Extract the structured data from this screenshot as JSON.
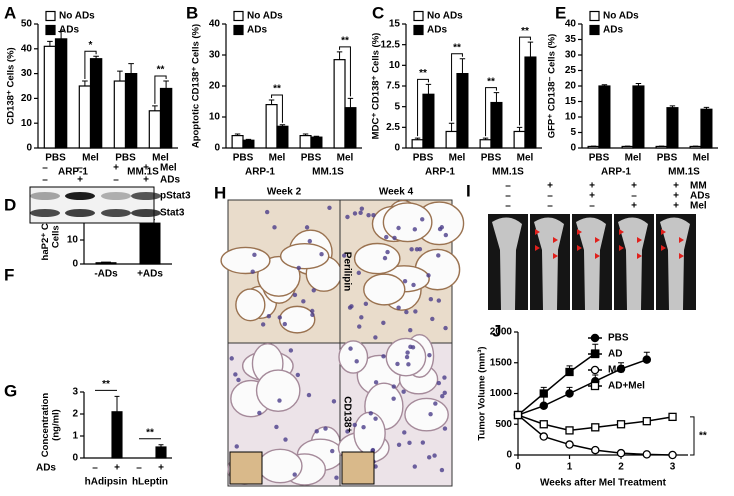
{
  "chart_data": [
    {
      "panel": "A",
      "type": "bar",
      "ylabel": "CD138⁺ Cells (%)",
      "categories": [
        "PBS",
        "Mel",
        "PBS",
        "Mel"
      ],
      "groups": [
        "ARP-1",
        "MM.1S"
      ],
      "series": [
        {
          "name": "No ADs",
          "color": "#ffffff",
          "values": [
            41,
            25,
            27,
            15
          ],
          "errors": [
            2,
            2,
            4,
            2
          ]
        },
        {
          "name": "ADs",
          "color": "#000000",
          "values": [
            44,
            36,
            30,
            24
          ],
          "errors": [
            3,
            1,
            4,
            3
          ]
        }
      ],
      "ylim": [
        0,
        50
      ],
      "yticks": [
        0,
        10,
        20,
        30,
        40,
        50
      ],
      "significance": [
        null,
        "*",
        null,
        "**"
      ],
      "legend": "upper left"
    },
    {
      "panel": "B",
      "type": "bar",
      "ylabel": "Apoptotic CD138⁺ Cells (%)",
      "categories": [
        "PBS",
        "Mel",
        "PBS",
        "Mel"
      ],
      "groups": [
        "ARP-1",
        "MM.1S"
      ],
      "series": [
        {
          "name": "No ADs",
          "color": "#ffffff",
          "values": [
            4,
            14,
            4,
            28.5
          ],
          "errors": [
            0.5,
            1.5,
            0.5,
            2.5
          ]
        },
        {
          "name": "ADs",
          "color": "#000000",
          "values": [
            2.5,
            7,
            3.5,
            13
          ],
          "errors": [
            0.3,
            0.5,
            0.3,
            3
          ]
        }
      ],
      "ylim": [
        0,
        40
      ],
      "yticks": [
        0,
        10,
        20,
        30,
        40
      ],
      "significance": [
        null,
        "**",
        null,
        "**"
      ],
      "legend": "upper left"
    },
    {
      "panel": "C",
      "type": "bar",
      "ylabel": "MDC⁺ CD138⁺ Cells (%)",
      "categories": [
        "PBS",
        "Mel",
        "PBS",
        "Mel"
      ],
      "groups": [
        "ARP-1",
        "MM.1S"
      ],
      "series": [
        {
          "name": "No ADs",
          "color": "#ffffff",
          "values": [
            1,
            2,
            1,
            2
          ],
          "errors": [
            0.2,
            1,
            0.2,
            0.5
          ]
        },
        {
          "name": "ADs",
          "color": "#000000",
          "values": [
            6.5,
            9,
            5.5,
            11
          ],
          "errors": [
            1.2,
            1.8,
            1.2,
            1.8
          ]
        }
      ],
      "ylim": [
        0,
        15
      ],
      "yticks": [
        0,
        2.5,
        5,
        7.5,
        10,
        12.5,
        15
      ],
      "significance": [
        "**",
        "**",
        "**",
        "**"
      ],
      "legend": "upper left"
    },
    {
      "panel": "E",
      "type": "bar",
      "ylabel": "GFP⁺ CD138⁻ Cells (%)",
      "categories": [
        "PBS",
        "Mel",
        "PBS",
        "Mel"
      ],
      "groups": [
        "ARP-1",
        "MM.1S"
      ],
      "series": [
        {
          "name": "No ADs",
          "color": "#ffffff",
          "values": [
            0.5,
            0.5,
            0.5,
            0.5
          ],
          "errors": [
            0.1,
            0.1,
            0.1,
            0.1
          ]
        },
        {
          "name": "ADs",
          "color": "#000000",
          "values": [
            20,
            20,
            13,
            12.5
          ],
          "errors": [
            0.4,
            0.8,
            0.6,
            0.6
          ]
        }
      ],
      "ylim": [
        0,
        40
      ],
      "yticks": [
        0,
        5,
        10,
        15,
        20,
        25,
        30,
        35,
        40
      ],
      "legend": "upper left"
    },
    {
      "panel": "F",
      "type": "bar",
      "ylabel": "haP2⁺ CD138⁻ Cells (%)",
      "categories": [
        "-ADs",
        "+ADs"
      ],
      "values": [
        0.5,
        17
      ],
      "errors": [
        0.3,
        1.5
      ],
      "color": "#000000",
      "ylim": [
        0,
        30
      ],
      "yticks": [
        0,
        10,
        20,
        30
      ],
      "significance": [
        null,
        "**"
      ]
    },
    {
      "panel": "G",
      "type": "bar",
      "ylabel": "Concentration (ng/ml)",
      "categories": [
        "–",
        "+",
        "–",
        "+"
      ],
      "groups": [
        "hAdipsin",
        "hLeptin"
      ],
      "row_label": "ADs",
      "values": [
        0,
        2.1,
        0,
        0.5
      ],
      "errors": [
        0,
        0.7,
        0,
        0.1
      ],
      "color": "#000000",
      "ylim": [
        0,
        3
      ],
      "yticks": [
        0,
        1,
        2,
        3
      ],
      "group_significance": [
        "**",
        "**"
      ]
    },
    {
      "panel": "J",
      "type": "line",
      "xlabel": "Weeks after Mel Treatment",
      "ylabel": "Tumor Volume (mm³)",
      "series": [
        {
          "name": "PBS",
          "color": "#000000",
          "marker": "circle",
          "filled": true,
          "x": [
            0,
            0.5,
            1,
            1.5,
            2,
            2.5
          ],
          "values": [
            650,
            800,
            1000,
            1200,
            1400,
            1550
          ],
          "errors": [
            0,
            150,
            100,
            100,
            100,
            120
          ]
        },
        {
          "name": "AD",
          "color": "#000000",
          "marker": "square",
          "filled": true,
          "x": [
            0,
            0.5,
            1,
            1.5
          ],
          "values": [
            650,
            1000,
            1350,
            1650
          ],
          "errors": [
            0,
            100,
            100,
            150
          ]
        },
        {
          "name": "Mel",
          "color": "#000000",
          "marker": "circle",
          "filled": false,
          "x": [
            0,
            0.5,
            1,
            1.5,
            2,
            2.5,
            3
          ],
          "values": [
            650,
            300,
            170,
            80,
            30,
            10,
            0
          ]
        },
        {
          "name": "AD+Mel",
          "color": "#000000",
          "marker": "square",
          "filled": false,
          "x": [
            0,
            0.5,
            1,
            1.5,
            2,
            2.5,
            3
          ],
          "values": [
            650,
            500,
            400,
            450,
            500,
            550,
            620
          ]
        }
      ],
      "xlim": [
        0,
        3.3
      ],
      "xticks": [
        0,
        1,
        2,
        3
      ],
      "ylim": [
        0,
        2000
      ],
      "yticks": [
        0,
        500,
        1000,
        1500,
        2000
      ],
      "annotation": "**",
      "legend": "upper right"
    }
  ],
  "blot": {
    "panel": "D",
    "rows": [
      {
        "label": "Mel",
        "marks": [
          "–",
          "–",
          "+",
          "+"
        ]
      },
      {
        "label": "ADs",
        "marks": [
          "–",
          "+",
          "–",
          "+"
        ]
      }
    ],
    "bands": [
      "pStat3",
      "Stat3"
    ]
  },
  "histology": {
    "panel": "H",
    "columns": [
      "Week 2",
      "Week 4"
    ],
    "rows": [
      "Perilipin",
      "CD138⁺"
    ]
  },
  "xray": {
    "panel": "I",
    "rows": [
      {
        "label": "MM",
        "marks": [
          "–",
          "+",
          "+",
          "+",
          "+"
        ]
      },
      {
        "label": "ADs",
        "marks": [
          "–",
          "–",
          "+",
          "–",
          "+"
        ]
      },
      {
        "label": "Mel",
        "marks": [
          "–",
          "–",
          "–",
          "+",
          "+"
        ]
      }
    ]
  }
}
